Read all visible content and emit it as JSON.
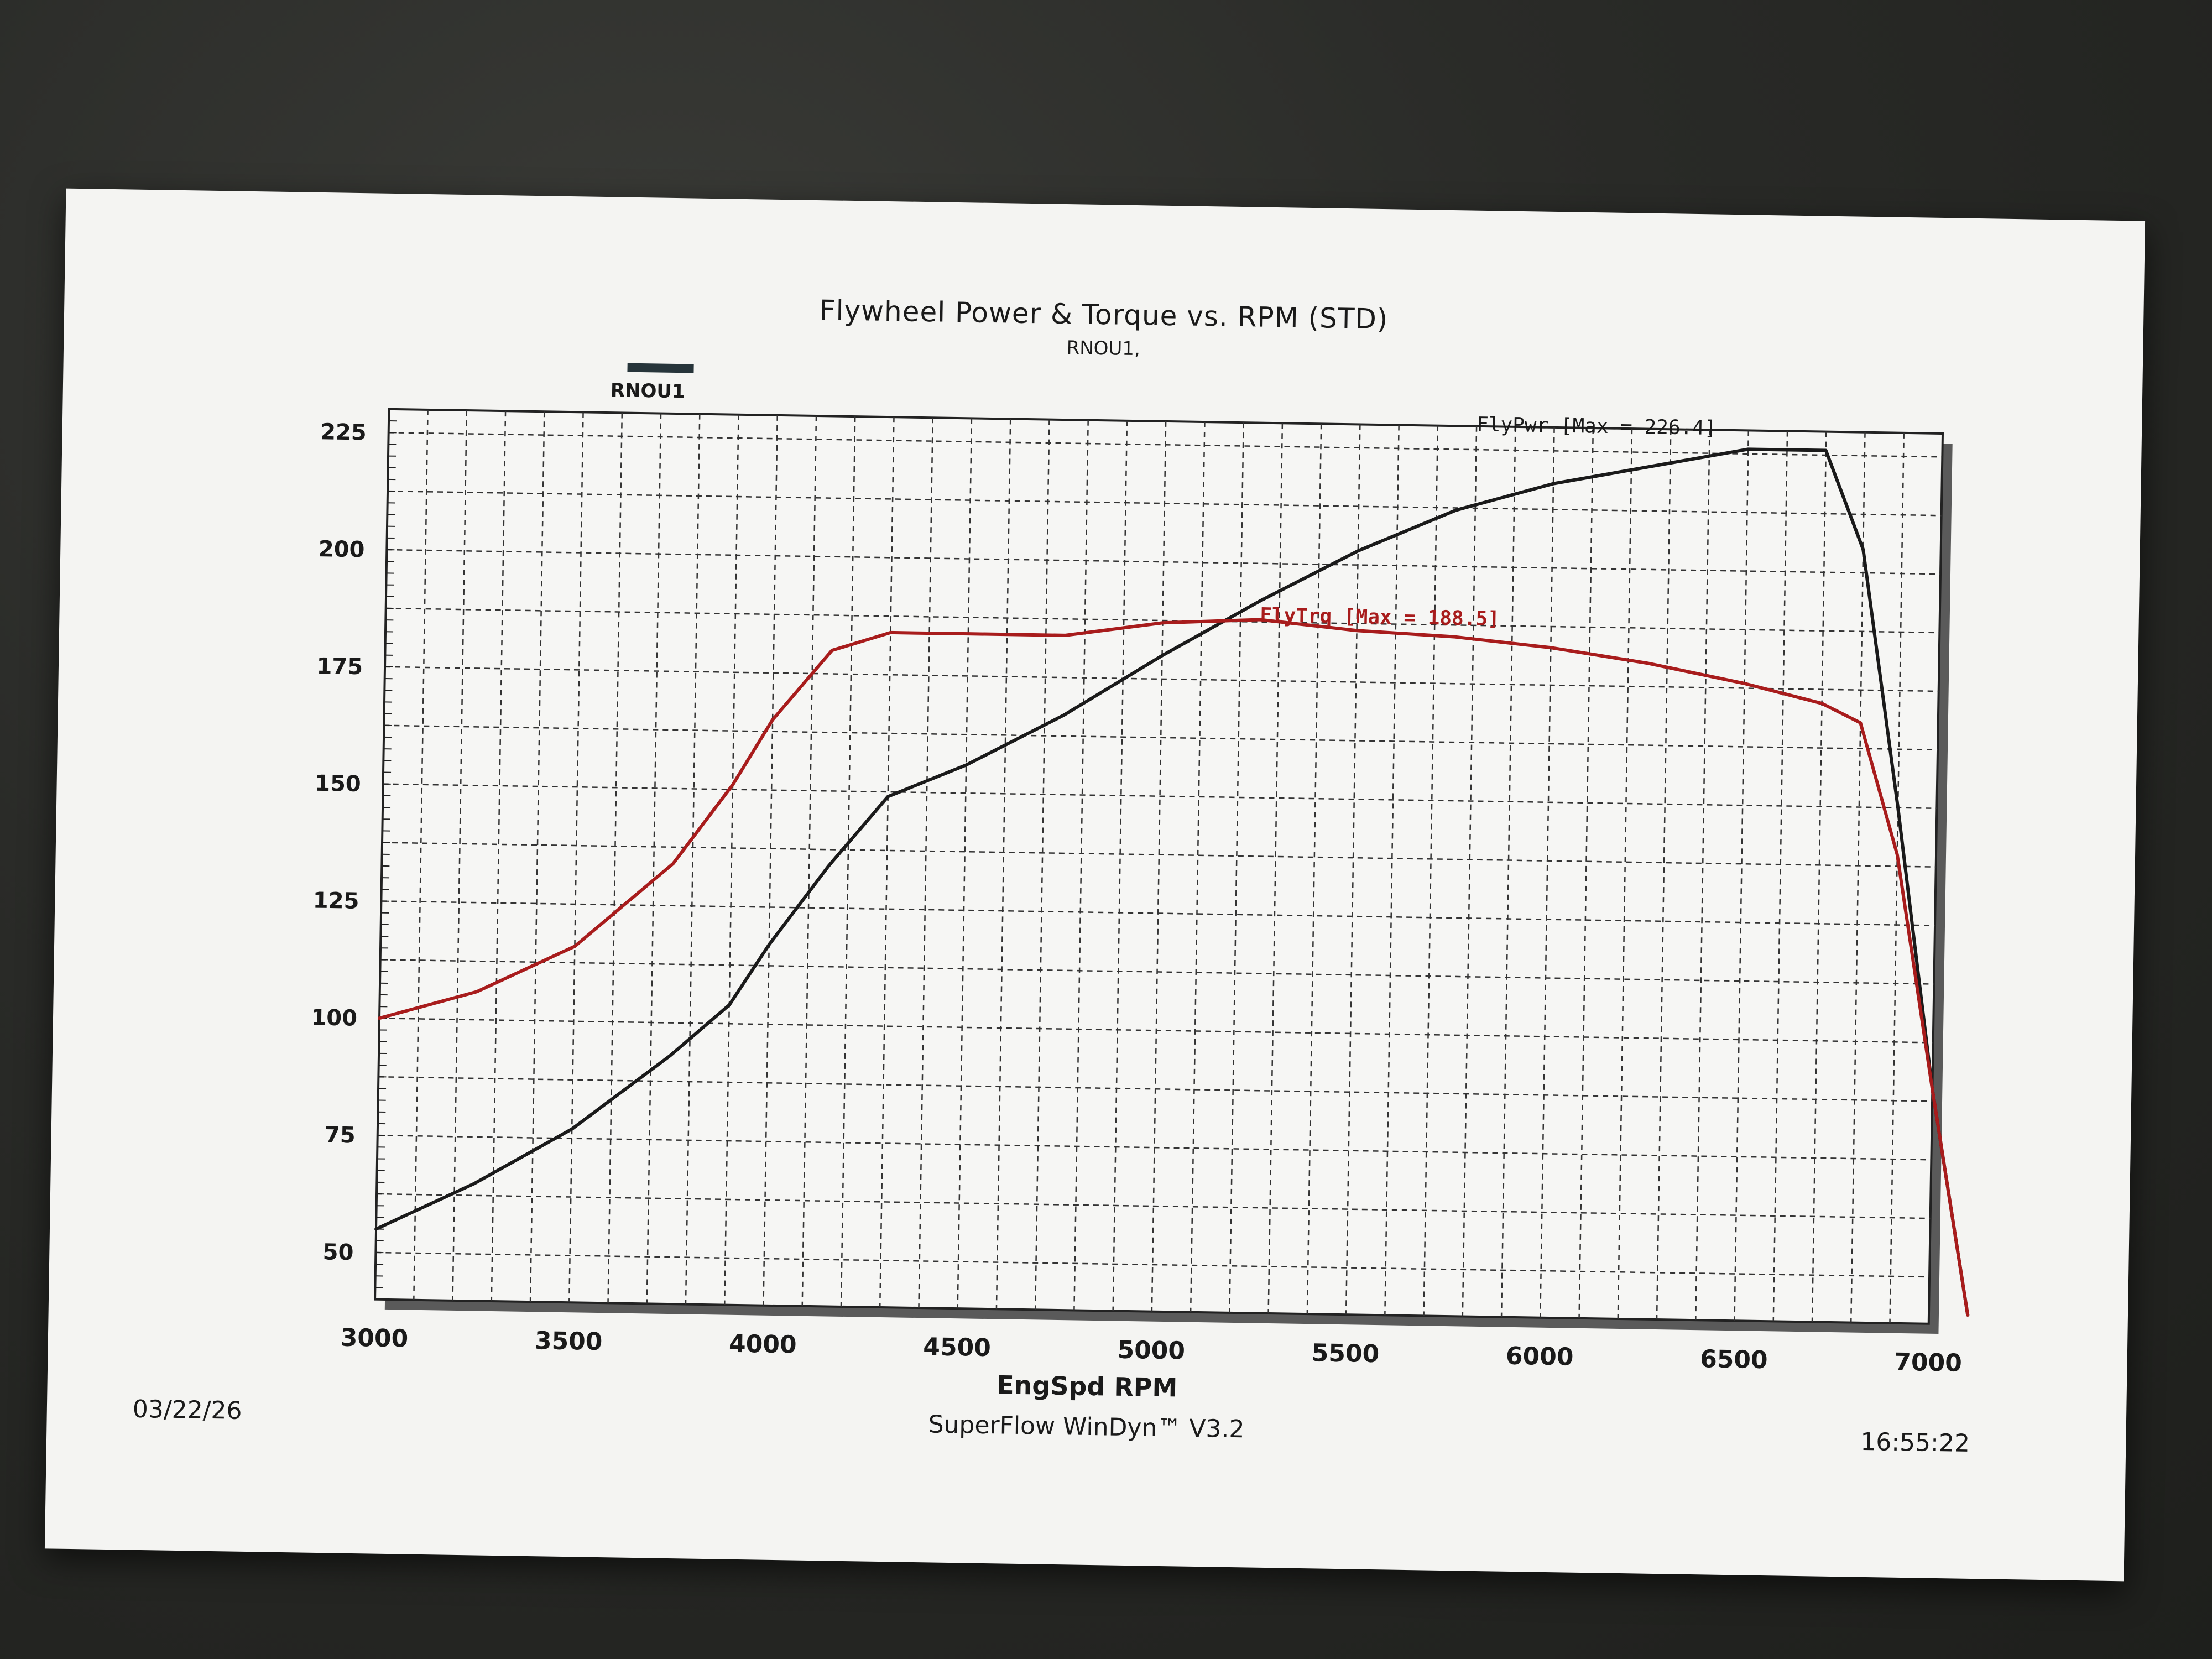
{
  "page": {
    "title": "Flywheel Power & Torque vs. RPM (STD)",
    "subtitle": "RNOU1,",
    "legend_label": "RNOU1",
    "date": "03/22/26",
    "software": "SuperFlow WinDyn™ V3.2",
    "time": "16:55:22"
  },
  "chart_data": {
    "type": "line",
    "title": "Flywheel Power & Torque vs. RPM (STD)",
    "xlabel": "EngSpd RPM",
    "ylabel": "",
    "xlim": [
      3000,
      7000
    ],
    "ylim": [
      40,
      230
    ],
    "x_ticks": [
      3000,
      3500,
      4000,
      4500,
      5000,
      5500,
      6000,
      6500,
      7000
    ],
    "y_ticks": [
      50,
      75,
      100,
      125,
      150,
      175,
      200,
      225
    ],
    "grid": true,
    "series": [
      {
        "name": "FlyPwr",
        "color": "#1a1a1a",
        "annotation": "FlyPwr [Max = 226.4]",
        "x": [
          3000,
          3250,
          3500,
          3750,
          3900,
          4000,
          4150,
          4300,
          4500,
          4750,
          5000,
          5250,
          5500,
          5750,
          6000,
          6250,
          6500,
          6700,
          6800,
          6900,
          7000,
          7100
        ],
        "y": [
          55,
          65,
          77,
          93,
          104,
          117,
          134,
          149,
          156,
          167,
          180,
          192,
          203,
          212,
          218,
          222,
          226,
          226,
          205,
          150,
          90,
          42
        ]
      },
      {
        "name": "FlyTrq",
        "color": "#a81c1c",
        "annotation": "FlyTrq [Max = 188.5]",
        "x": [
          3000,
          3250,
          3500,
          3750,
          3900,
          4000,
          4150,
          4300,
          4500,
          4750,
          5000,
          5250,
          5500,
          5750,
          6000,
          6250,
          6500,
          6700,
          6800,
          6900,
          7000,
          7100
        ],
        "y": [
          100,
          106,
          116,
          134,
          151,
          165,
          180,
          184,
          184,
          184,
          187,
          188,
          186,
          185,
          183,
          180,
          176,
          172,
          168,
          140,
          90,
          42
        ]
      }
    ]
  }
}
